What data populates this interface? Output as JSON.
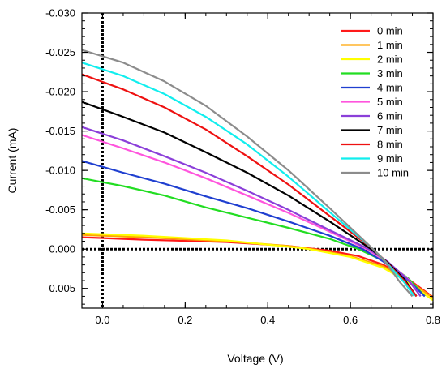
{
  "chart_data": {
    "type": "line",
    "title": "",
    "xlabel": "Voltage (V)",
    "ylabel": "Current (mA)",
    "xlim": [
      -0.05,
      0.8
    ],
    "ylim": [
      -0.03,
      0.0075
    ],
    "y_reversed": true,
    "grid": false,
    "legend_position": "top-right",
    "reference_lines": [
      {
        "axis": "x",
        "value": 0.0,
        "style": "dotted-black"
      },
      {
        "axis": "y",
        "value": 0.0,
        "style": "dotted-black"
      }
    ],
    "x_ticks": [
      {
        "value": 0.0,
        "label": "0.0"
      },
      {
        "value": 0.2,
        "label": "0.2"
      },
      {
        "value": 0.4,
        "label": "0.4"
      },
      {
        "value": 0.6,
        "label": "0.6"
      },
      {
        "value": 0.8,
        "label": "0.8"
      }
    ],
    "y_ticks": [
      {
        "value": -0.03,
        "label": "-0.030"
      },
      {
        "value": -0.025,
        "label": "-0.025"
      },
      {
        "value": -0.02,
        "label": "-0.020"
      },
      {
        "value": -0.015,
        "label": "-0.015"
      },
      {
        "value": -0.01,
        "label": "-0.010"
      },
      {
        "value": -0.005,
        "label": "-0.005"
      },
      {
        "value": 0.0,
        "label": "0.000"
      },
      {
        "value": 0.005,
        "label": "0.005"
      }
    ],
    "series": [
      {
        "name": "0 min",
        "color": "#ff1a1a",
        "points": [
          [
            -0.05,
            -0.0015
          ],
          [
            0.1,
            -0.0012
          ],
          [
            0.3,
            -0.0009
          ],
          [
            0.45,
            -0.0004
          ],
          [
            0.55,
            0.0002
          ],
          [
            0.62,
            0.0009
          ],
          [
            0.68,
            0.002
          ],
          [
            0.74,
            0.0038
          ],
          [
            0.8,
            0.0061
          ]
        ]
      },
      {
        "name": "1 min",
        "color": "#ffa500",
        "points": [
          [
            -0.05,
            -0.0018
          ],
          [
            0.1,
            -0.0015
          ],
          [
            0.3,
            -0.001
          ],
          [
            0.45,
            -0.0004
          ],
          [
            0.52,
            0.0001
          ],
          [
            0.6,
            0.0009
          ],
          [
            0.68,
            0.0022
          ],
          [
            0.74,
            0.004
          ],
          [
            0.8,
            0.0062
          ]
        ]
      },
      {
        "name": "2 min",
        "color": "#ffff00",
        "points": [
          [
            -0.05,
            -0.002
          ],
          [
            0.1,
            -0.0017
          ],
          [
            0.3,
            -0.0011
          ],
          [
            0.45,
            -0.0003
          ],
          [
            0.5,
            0.0
          ],
          [
            0.6,
            0.001
          ],
          [
            0.68,
            0.0024
          ],
          [
            0.74,
            0.0042
          ],
          [
            0.8,
            0.0065
          ]
        ]
      },
      {
        "name": "3 min",
        "color": "#22dd22",
        "points": [
          [
            -0.05,
            -0.009
          ],
          [
            0.05,
            -0.008
          ],
          [
            0.15,
            -0.0068
          ],
          [
            0.25,
            -0.0053
          ],
          [
            0.35,
            -0.004
          ],
          [
            0.45,
            -0.0027
          ],
          [
            0.55,
            -0.0013
          ],
          [
            0.62,
            0.0
          ],
          [
            0.68,
            0.0015
          ],
          [
            0.74,
            0.0037
          ],
          [
            0.78,
            0.006
          ]
        ]
      },
      {
        "name": "4 min",
        "color": "#1f3fd0",
        "points": [
          [
            -0.05,
            -0.0112
          ],
          [
            0.05,
            -0.0097
          ],
          [
            0.15,
            -0.0083
          ],
          [
            0.25,
            -0.0067
          ],
          [
            0.35,
            -0.0052
          ],
          [
            0.45,
            -0.0035
          ],
          [
            0.55,
            -0.0017
          ],
          [
            0.63,
            0.0
          ],
          [
            0.68,
            0.0016
          ],
          [
            0.74,
            0.004
          ],
          [
            0.78,
            0.006
          ]
        ]
      },
      {
        "name": "5 min",
        "color": "#ff55dd",
        "points": [
          [
            -0.05,
            -0.0145
          ],
          [
            0.05,
            -0.0128
          ],
          [
            0.15,
            -0.011
          ],
          [
            0.25,
            -0.009
          ],
          [
            0.35,
            -0.0068
          ],
          [
            0.45,
            -0.0046
          ],
          [
            0.55,
            -0.0022
          ],
          [
            0.64,
            0.0
          ],
          [
            0.69,
            0.0017
          ],
          [
            0.74,
            0.0038
          ],
          [
            0.77,
            0.006
          ]
        ]
      },
      {
        "name": "6 min",
        "color": "#8b3fd9",
        "points": [
          [
            -0.05,
            -0.0155
          ],
          [
            0.05,
            -0.0138
          ],
          [
            0.15,
            -0.0118
          ],
          [
            0.25,
            -0.0097
          ],
          [
            0.35,
            -0.0074
          ],
          [
            0.45,
            -0.005
          ],
          [
            0.55,
            -0.0024
          ],
          [
            0.645,
            0.0
          ],
          [
            0.69,
            0.0016
          ],
          [
            0.74,
            0.0039
          ],
          [
            0.77,
            0.006
          ]
        ]
      },
      {
        "name": "7 min",
        "color": "#000000",
        "points": [
          [
            -0.05,
            -0.0187
          ],
          [
            0.05,
            -0.0168
          ],
          [
            0.15,
            -0.0148
          ],
          [
            0.25,
            -0.0123
          ],
          [
            0.35,
            -0.0097
          ],
          [
            0.45,
            -0.0068
          ],
          [
            0.55,
            -0.0035
          ],
          [
            0.65,
            0.0
          ],
          [
            0.69,
            0.0017
          ],
          [
            0.73,
            0.0038
          ],
          [
            0.76,
            0.006
          ]
        ]
      },
      {
        "name": "8 min",
        "color": "#ee1111",
        "points": [
          [
            -0.05,
            -0.0222
          ],
          [
            0.05,
            -0.0203
          ],
          [
            0.15,
            -0.018
          ],
          [
            0.25,
            -0.0152
          ],
          [
            0.35,
            -0.0118
          ],
          [
            0.45,
            -0.0082
          ],
          [
            0.55,
            -0.0042
          ],
          [
            0.655,
            0.0
          ],
          [
            0.69,
            0.0018
          ],
          [
            0.73,
            0.004
          ],
          [
            0.76,
            0.006
          ]
        ]
      },
      {
        "name": "9 min",
        "color": "#11eeee",
        "points": [
          [
            -0.05,
            -0.0237
          ],
          [
            0.05,
            -0.022
          ],
          [
            0.15,
            -0.0197
          ],
          [
            0.25,
            -0.0168
          ],
          [
            0.35,
            -0.0133
          ],
          [
            0.45,
            -0.0092
          ],
          [
            0.55,
            -0.0047
          ],
          [
            0.655,
            0.0
          ],
          [
            0.69,
            0.0019
          ],
          [
            0.73,
            0.0042
          ],
          [
            0.755,
            0.006
          ]
        ]
      },
      {
        "name": "10 min",
        "color": "#8c8c8c",
        "points": [
          [
            -0.05,
            -0.0253
          ],
          [
            0.05,
            -0.0237
          ],
          [
            0.15,
            -0.0213
          ],
          [
            0.25,
            -0.0182
          ],
          [
            0.35,
            -0.0143
          ],
          [
            0.45,
            -0.01
          ],
          [
            0.55,
            -0.0052
          ],
          [
            0.655,
            0.0
          ],
          [
            0.69,
            0.002
          ],
          [
            0.72,
            0.0042
          ],
          [
            0.75,
            0.006
          ]
        ]
      }
    ]
  }
}
